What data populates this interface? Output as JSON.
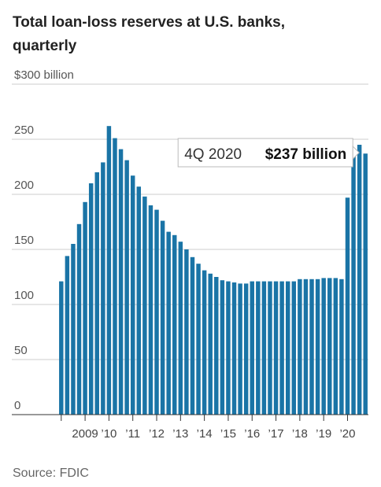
{
  "chart_data": {
    "type": "bar",
    "title": "Total loan-loss reserves at U.S. banks, quarterly",
    "source": "Source: FDIC",
    "color": "#1a74a6",
    "grid": true,
    "ylim": [
      0,
      300
    ],
    "yticks": [
      0,
      50,
      100,
      150,
      200,
      250,
      {
        "value": 300,
        "label": "$300 billion"
      }
    ],
    "categories": [
      null,
      null,
      null,
      null,
      "2009",
      null,
      null,
      null,
      "’10",
      null,
      null,
      null,
      "’11",
      null,
      null,
      null,
      "’12",
      null,
      null,
      null,
      "’13",
      null,
      null,
      null,
      "’14",
      null,
      null,
      null,
      "’15",
      null,
      null,
      null,
      "’16",
      null,
      null,
      null,
      "’17",
      null,
      null,
      null,
      "’18",
      null,
      null,
      null,
      "’19",
      null,
      null,
      null,
      "’20",
      null,
      null,
      null
    ],
    "values": [
      121,
      144,
      155,
      173,
      193,
      210,
      220,
      229,
      262,
      251,
      241,
      231,
      217,
      207,
      198,
      190,
      186,
      176,
      166,
      163,
      157,
      150,
      143,
      137,
      131,
      128,
      125,
      122,
      121,
      120,
      119,
      119,
      121,
      121,
      121,
      121,
      121,
      121,
      121,
      121,
      123,
      123,
      123,
      123,
      124,
      124,
      124,
      123,
      197,
      240,
      245,
      237
    ],
    "value_labels": [
      null,
      null,
      null,
      null,
      null,
      null,
      null,
      null,
      null,
      null,
      null,
      null,
      null,
      null,
      null,
      null,
      null,
      null,
      null,
      null,
      null,
      null,
      null,
      null,
      null,
      null,
      null,
      null,
      null,
      null,
      null,
      null,
      null,
      null,
      null,
      null,
      null,
      null,
      null,
      null,
      null,
      null,
      null,
      null,
      null,
      null,
      null,
      null,
      null,
      null,
      null,
      "$237 billion"
    ],
    "annotation": "4Q 2020"
  }
}
